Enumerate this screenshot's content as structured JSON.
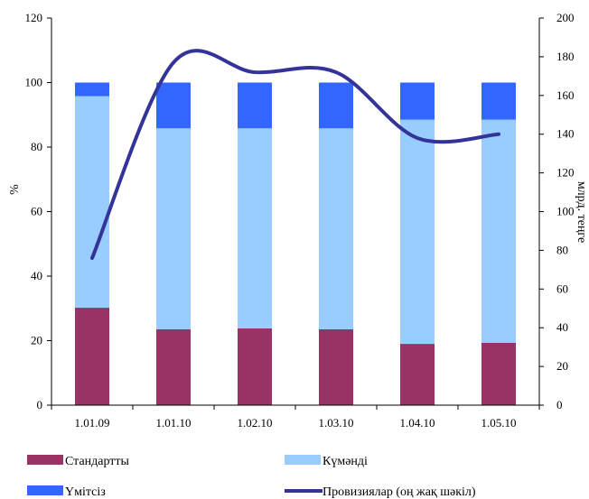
{
  "chart_data": {
    "type": "bar",
    "stacked": true,
    "percent_stacked": true,
    "categories": [
      "1.01.09",
      "1.01.10",
      "1.02.10",
      "1.03.10",
      "1.04.10",
      "1.05.10"
    ],
    "series": [
      {
        "name": "Стандартты",
        "values": [
          30.2,
          23.5,
          23.8,
          23.5,
          19.0,
          19.3
        ],
        "color": "#993366"
      },
      {
        "name": "Күмәнді",
        "values": [
          65.6,
          62.3,
          62.0,
          62.3,
          69.5,
          69.2
        ],
        "color": "#99ccff"
      },
      {
        "name": "Үмітсіз",
        "values": [
          4.2,
          14.2,
          14.2,
          14.2,
          11.5,
          11.5
        ],
        "color": "#3366ff"
      }
    ],
    "line_series": {
      "name": "Провизиялар (оң жақ шәкіл)",
      "axis": "right",
      "values": [
        76,
        177,
        172,
        172,
        138,
        140
      ],
      "color": "#333399"
    },
    "left_axis": {
      "label": "%",
      "min": 0,
      "max": 120,
      "ticks": [
        0,
        20,
        40,
        60,
        80,
        100,
        120
      ]
    },
    "right_axis": {
      "label": "млрд. теңге",
      "min": 0,
      "max": 200,
      "ticks": [
        0,
        20,
        40,
        60,
        80,
        100,
        120,
        140,
        160,
        180,
        200
      ]
    },
    "grid": false,
    "legend": "bottom"
  }
}
